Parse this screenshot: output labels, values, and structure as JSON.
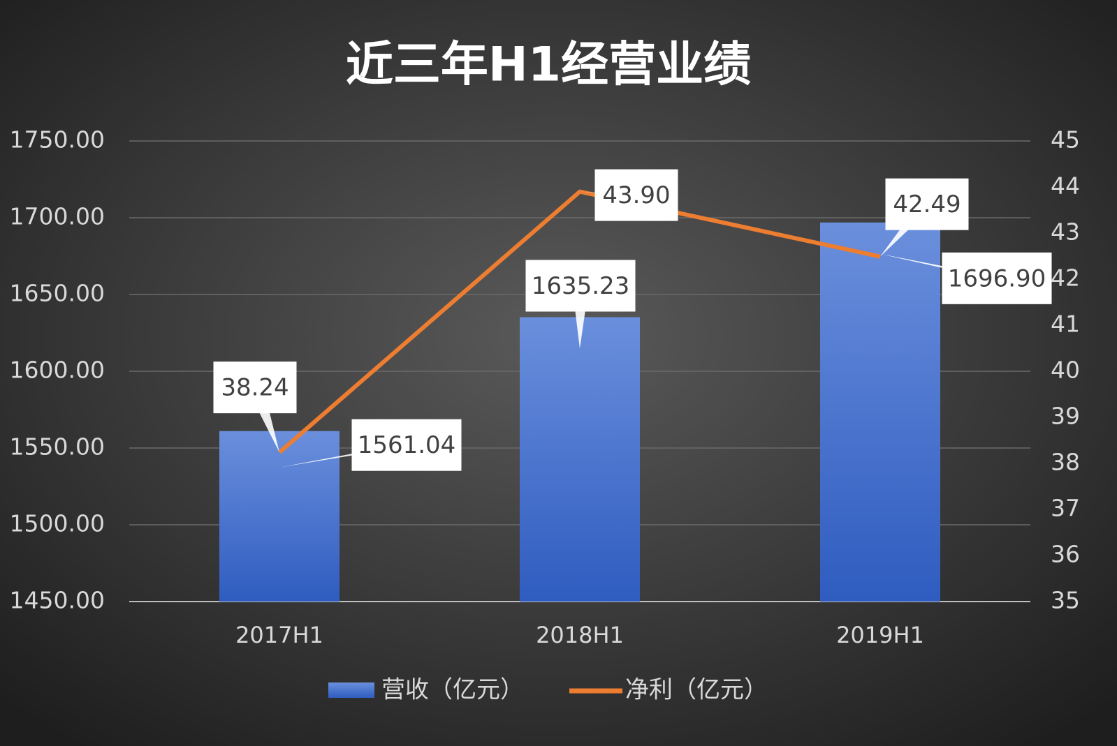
{
  "chart_data": {
    "type": "combo",
    "title": "近三年H1经营业绩",
    "categories": [
      "2017H1",
      "2018H1",
      "2019H1"
    ],
    "series": [
      {
        "name": "营收（亿元）",
        "type": "bar",
        "color": "#4472c4",
        "values": [
          1561.04,
          1635.23,
          1696.9
        ],
        "value_labels": [
          "1561.04",
          "1635.23",
          "1696.90"
        ]
      },
      {
        "name": "净利（亿元）",
        "type": "line",
        "axis": "y2",
        "color": "#ed7d31",
        "values": [
          38.24,
          43.9,
          42.49
        ],
        "value_labels": [
          "38.24",
          "43.90",
          "42.49"
        ]
      }
    ],
    "ylim": [
      1450,
      1750
    ],
    "yticks": [
      {
        "value": 1450,
        "label": "1450.00"
      },
      {
        "value": 1500,
        "label": "1500.00"
      },
      {
        "value": 1550,
        "label": "1550.00"
      },
      {
        "value": 1600,
        "label": "1600.00"
      },
      {
        "value": 1650,
        "label": "1650.00"
      },
      {
        "value": 1700,
        "label": "1700.00"
      },
      {
        "value": 1750,
        "label": "1750.00"
      }
    ],
    "y2lim": [
      35,
      45
    ],
    "y2ticks": [
      35,
      36,
      37,
      38,
      39,
      40,
      41,
      42,
      43,
      44,
      45
    ],
    "grid": true,
    "legend": "bottom"
  }
}
